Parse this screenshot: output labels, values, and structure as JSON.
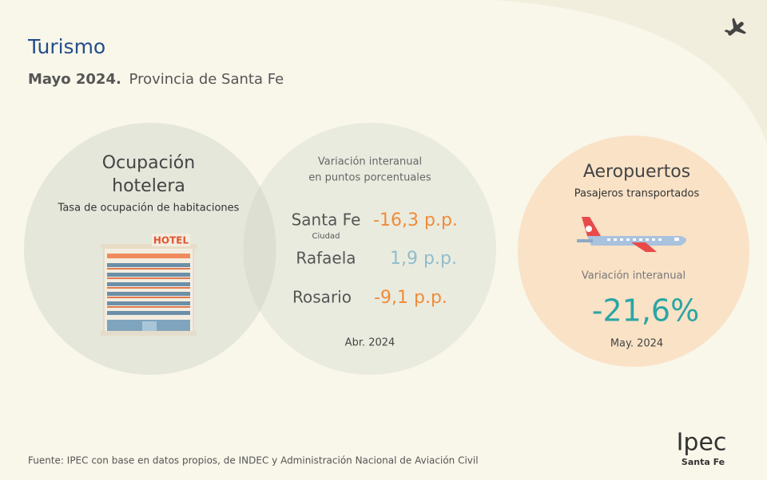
{
  "header": {
    "title": "Turismo",
    "date": "Mayo 2024.",
    "subtitle": "Provincia de Santa Fe"
  },
  "hotel": {
    "title_line1": "Ocupación",
    "title_line2": "hotelera",
    "subtitle": "Tasa de ocupación de habitaciones",
    "sign": "HOTEL"
  },
  "variation": {
    "title_line1": "Variación interanual",
    "title_line2": "en puntos porcentuales",
    "rows": [
      {
        "city": "Santa Fe",
        "note": "Ciudad",
        "value": "-16,3 p.p."
      },
      {
        "city": "Rafaela",
        "value": "1,9 p.p."
      },
      {
        "city": "Rosario",
        "value": "-9,1 p.p."
      }
    ],
    "period": "Abr. 2024"
  },
  "airports": {
    "title": "Aeropuertos",
    "subtitle": "Pasajeros transportados",
    "label": "Variación interanual",
    "value": "-21,6%",
    "period": "May. 2024"
  },
  "footer": {
    "source": "Fuente: IPEC con base en datos propios, de INDEC y  Administración Nacional de Aviación Civil",
    "logo": "Ipec",
    "logo_sub": "Santa Fe"
  }
}
